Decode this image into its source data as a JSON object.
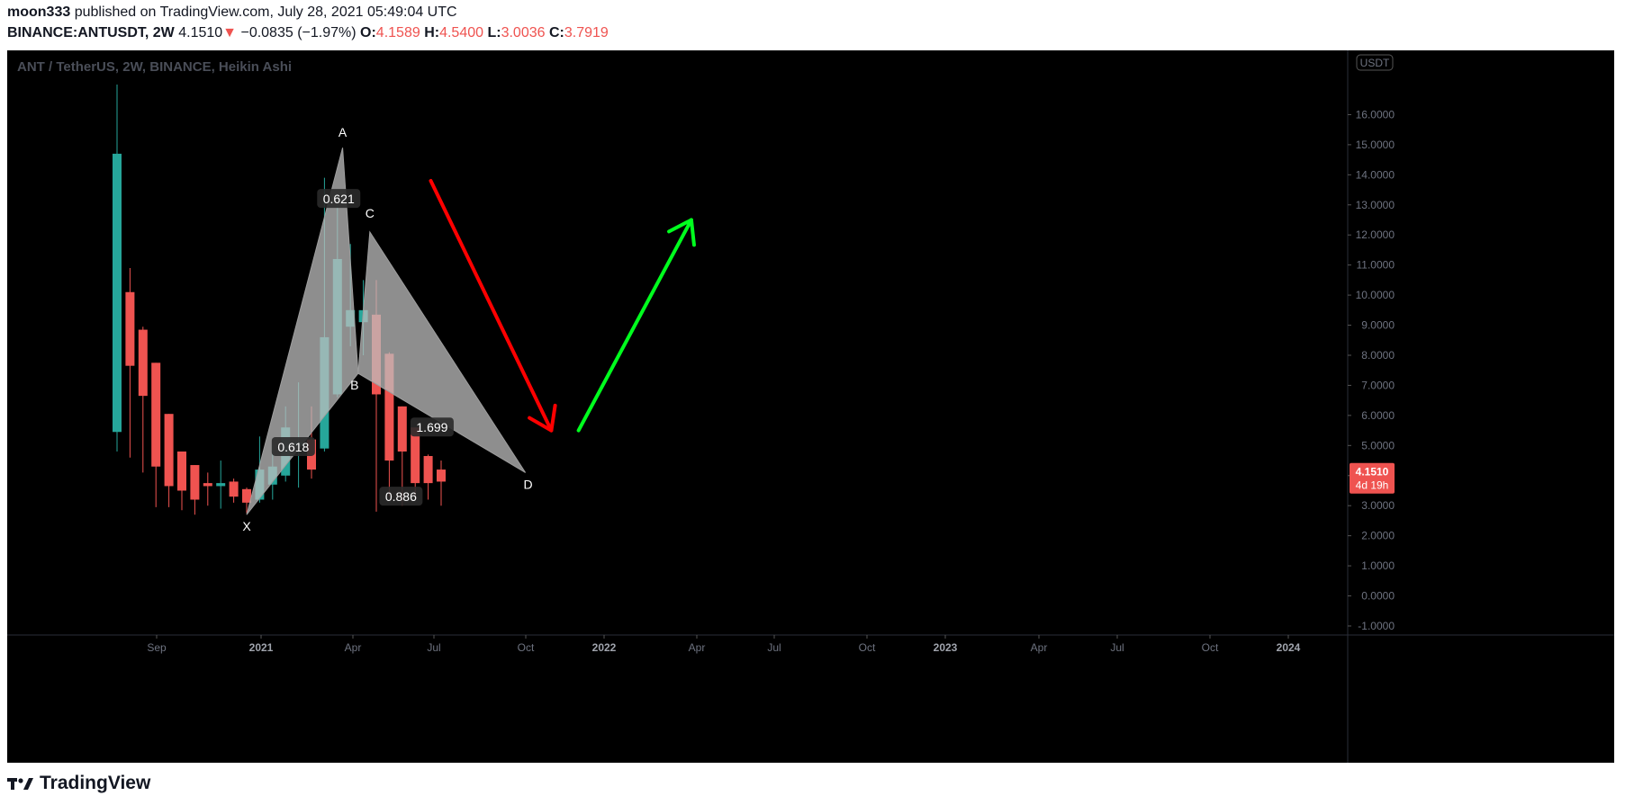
{
  "header": {
    "author": "moon333",
    "published_text": "published on TradingView.com, July 28, 2021 05:49:04 UTC",
    "symbol": "BINANCE:ANTUSDT, 2W",
    "last": "4.1510",
    "change_arrow": "▼",
    "change": "−0.0835 (−1.97%)",
    "open_label": "O:",
    "open": "4.1589",
    "high_label": "H:",
    "high": "4.5400",
    "low_label": "L:",
    "low": "3.0036",
    "close_label": "C:",
    "close": "3.7919"
  },
  "chart_title": "ANT / TetherUS, 2W, BINANCE, Heikin Ashi",
  "footer": {
    "brand": "TradingView",
    "logo_icon": "tradingview-logo-icon"
  },
  "colors": {
    "up": "#26a69a",
    "down": "#ef5350",
    "background": "#000000",
    "pattern_fill": "#bdbdbd",
    "red_arrow": "#ff0000",
    "green_arrow": "#00ff1e",
    "price_tag": "#ef5350"
  },
  "chart_data": {
    "type": "candlestick",
    "ylim": [
      -1.3,
      17.0
    ],
    "currency_badge": "USDT",
    "y_ticks": [
      "16.0000",
      "15.0000",
      "14.0000",
      "13.0000",
      "12.0000",
      "11.0000",
      "10.0000",
      "9.0000",
      "8.0000",
      "7.0000",
      "6.0000",
      "5.0000",
      "4.0000",
      "3.0000",
      "2.0000",
      "1.0000",
      "0.0000",
      "-1.0000"
    ],
    "x_ticks": [
      "Sep",
      "2021",
      "Apr",
      "Jul",
      "Oct",
      "2022",
      "Apr",
      "Jul",
      "Oct",
      "2023",
      "Apr",
      "Jul",
      "Oct",
      "2024"
    ],
    "last_price": "4.1510",
    "countdown": "4d 19h",
    "candles": [
      {
        "o": 5.45,
        "c": 14.7,
        "h": 17.0,
        "l": 4.8
      },
      {
        "o": 10.1,
        "c": 7.65,
        "h": 10.9,
        "l": 4.6
      },
      {
        "o": 8.85,
        "c": 6.65,
        "h": 8.95,
        "l": 4.1
      },
      {
        "o": 7.75,
        "c": 4.3,
        "h": 7.75,
        "l": 2.95
      },
      {
        "o": 6.05,
        "c": 3.65,
        "h": 6.05,
        "l": 2.95
      },
      {
        "o": 4.8,
        "c": 3.5,
        "h": 4.8,
        "l": 2.85
      },
      {
        "o": 4.35,
        "c": 3.2,
        "h": 4.35,
        "l": 2.7
      },
      {
        "o": 3.75,
        "c": 3.65,
        "h": 4.1,
        "l": 3.0
      },
      {
        "o": 3.65,
        "c": 3.75,
        "h": 4.5,
        "l": 2.9
      },
      {
        "o": 3.8,
        "c": 3.3,
        "h": 3.9,
        "l": 3.1
      },
      {
        "o": 3.55,
        "c": 3.1,
        "h": 3.6,
        "l": 2.75
      },
      {
        "o": 3.2,
        "c": 4.2,
        "h": 5.3,
        "l": 3.1
      },
      {
        "o": 3.7,
        "c": 4.3,
        "h": 5.0,
        "l": 3.2
      },
      {
        "o": 4.0,
        "c": 5.6,
        "h": 6.3,
        "l": 3.8
      },
      {
        "o": 5.0,
        "c": 5.1,
        "h": 7.1,
        "l": 3.6
      },
      {
        "o": 5.2,
        "c": 4.2,
        "h": 6.3,
        "l": 3.9
      },
      {
        "o": 4.9,
        "c": 8.6,
        "h": 13.9,
        "l": 4.8
      },
      {
        "o": 6.7,
        "c": 11.2,
        "h": 13.0,
        "l": 6.6
      },
      {
        "o": 8.95,
        "c": 9.5,
        "h": 11.7,
        "l": 8.3
      },
      {
        "o": 9.1,
        "c": 9.5,
        "h": 10.5,
        "l": 8.0
      },
      {
        "o": 9.35,
        "c": 6.7,
        "h": 10.5,
        "l": 2.8
      },
      {
        "o": 8.05,
        "c": 4.5,
        "h": 8.1,
        "l": 3.3
      },
      {
        "o": 6.3,
        "c": 4.8,
        "h": 6.3,
        "l": 3.0
      },
      {
        "o": 5.6,
        "c": 3.75,
        "h": 5.6,
        "l": 3.3
      },
      {
        "o": 4.65,
        "c": 3.75,
        "h": 4.7,
        "l": 3.2
      },
      {
        "o": 4.2,
        "c": 3.8,
        "h": 4.5,
        "l": 3.0
      }
    ],
    "pattern": {
      "points": {
        "X": {
          "label": "X",
          "candle": 10,
          "price": 2.7
        },
        "A": {
          "label": "A",
          "candle": 17.4,
          "price": 14.9
        },
        "B": {
          "label": "B",
          "candle": 18.6,
          "price": 7.4
        },
        "C": {
          "label": "C",
          "candle": 19.5,
          "price": 12.1
        },
        "D": {
          "label": "D",
          "candle": 31.5,
          "price": 4.1
        }
      },
      "ratios": [
        {
          "text": "0.621",
          "candle": 17.1,
          "price": 13.2
        },
        {
          "text": "0.618",
          "candle": 13.6,
          "price": 4.95
        },
        {
          "text": "1.699",
          "candle": 24.3,
          "price": 5.6
        },
        {
          "text": "0.886",
          "candle": 21.9,
          "price": 3.3
        }
      ]
    },
    "arrows": [
      {
        "color": "red",
        "from": {
          "candle": 24.2,
          "price": 13.8
        },
        "to": {
          "candle": 33.5,
          "price": 5.5
        }
      },
      {
        "color": "green",
        "from": {
          "candle": 35.6,
          "price": 5.5
        },
        "to": {
          "candle": 44.3,
          "price": 12.5
        }
      }
    ]
  }
}
